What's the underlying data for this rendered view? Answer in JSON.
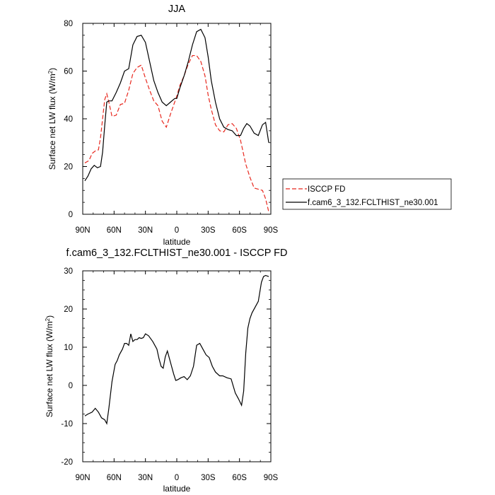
{
  "chart_data": [
    {
      "type": "line",
      "title": "JJA",
      "xlabel": "latitude",
      "ylabel": "Surface net LW flux",
      "ylabel_unit_base": "W/m",
      "ylabel_unit_exp": "2",
      "xlim": [
        90,
        -90
      ],
      "ylim": [
        0,
        80
      ],
      "x_tick_values": [
        90,
        60,
        30,
        0,
        -30,
        -60,
        -90
      ],
      "x_tick_labels": [
        "90N",
        "60N",
        "30N",
        "0",
        "30S",
        "60S",
        "90S"
      ],
      "y_tick_values": [
        0,
        20,
        40,
        60,
        80
      ],
      "y_tick_labels": [
        "0",
        "20",
        "40",
        "60",
        "80"
      ],
      "grid": false,
      "legend": "outside-right",
      "series": [
        {
          "name": "ISCCP FD",
          "color": "#e8281e",
          "dash": "dashed",
          "x": [
            88,
            84,
            81,
            78,
            75,
            73,
            71,
            69,
            67,
            65,
            62,
            58,
            54,
            50,
            46,
            42,
            38,
            34,
            30,
            26,
            22,
            18,
            14,
            10,
            6,
            2,
            0,
            -3,
            -7,
            -11,
            -15,
            -19,
            -23,
            -27,
            -30,
            -33,
            -37,
            -41,
            -45,
            -49,
            -53,
            -57,
            -61,
            -63,
            -66,
            -70,
            -74,
            -78,
            -82,
            -85,
            -88
          ],
          "y": [
            21.5,
            22.5,
            25.5,
            26.5,
            27,
            32,
            40,
            48,
            50.5,
            47,
            41,
            41.5,
            46,
            46.5,
            52,
            59,
            61.5,
            62.5,
            57,
            52,
            47.5,
            45.5,
            39,
            36.5,
            42,
            47,
            49.5,
            54,
            58,
            63,
            66.5,
            66.5,
            64,
            58,
            50,
            44,
            37.5,
            35,
            34.5,
            37.5,
            38,
            36,
            31,
            27,
            21,
            15.5,
            11,
            10.5,
            10,
            6.5,
            1
          ]
        },
        {
          "name": "f.cam6_3_132.FCLTHIST_ne30.001",
          "color": "#000000",
          "dash": "solid",
          "x": [
            88,
            85,
            82,
            79,
            76,
            73,
            71,
            69,
            67,
            65,
            62,
            58,
            54,
            50,
            46,
            42,
            38,
            34,
            30,
            26,
            22,
            18,
            14,
            10,
            6,
            2,
            0,
            -3,
            -7,
            -11,
            -15,
            -19,
            -23,
            -27,
            -30,
            -33,
            -37,
            -41,
            -45,
            -49,
            -53,
            -57,
            -61,
            -64,
            -67,
            -70,
            -74,
            -78,
            -82,
            -85,
            -88
          ],
          "y": [
            14,
            16,
            19,
            20.5,
            19.5,
            20,
            26,
            37,
            47,
            47.5,
            47.5,
            51,
            55,
            60,
            61,
            71,
            74.5,
            75,
            72,
            64,
            56,
            51,
            47,
            45.5,
            47,
            48.5,
            48.5,
            53,
            58,
            64,
            71,
            76.5,
            77.5,
            74,
            66,
            56,
            47,
            40,
            36.5,
            35.5,
            35,
            33,
            33,
            36,
            38,
            37,
            34,
            33,
            37.5,
            38.5,
            30
          ]
        }
      ]
    },
    {
      "type": "line",
      "title": "f.cam6_3_132.FCLTHIST_ne30.001 - ISCCP FD",
      "xlabel": "latitude",
      "ylabel": "Surface net LW flux",
      "ylabel_unit_base": "W/m",
      "ylabel_unit_exp": "2",
      "xlim": [
        90,
        -90
      ],
      "ylim": [
        -20,
        30
      ],
      "x_tick_values": [
        90,
        60,
        30,
        0,
        -30,
        -60,
        -90
      ],
      "x_tick_labels": [
        "90N",
        "60N",
        "30N",
        "0",
        "30S",
        "60S",
        "90S"
      ],
      "y_tick_values": [
        -20,
        -10,
        0,
        10,
        20,
        30
      ],
      "y_tick_labels": [
        "-20",
        "-10",
        "0",
        "10",
        "20",
        "30"
      ],
      "grid": false,
      "series": [
        {
          "color": "#000000",
          "dash": "solid",
          "x": [
            88,
            85,
            81,
            78,
            75,
            72,
            69,
            67,
            65,
            62,
            59,
            57,
            55,
            52,
            50,
            48,
            46,
            44,
            42,
            40,
            38,
            36,
            34,
            32,
            30,
            27,
            23,
            19,
            17,
            15,
            13,
            11,
            9,
            7,
            5,
            3,
            1,
            -1,
            -4,
            -7,
            -10,
            -13,
            -16,
            -19,
            -22,
            -25,
            -28,
            -31,
            -34,
            -37,
            -41,
            -44,
            -48,
            -52,
            -56,
            -59,
            -62,
            -64,
            -66,
            -68,
            -70,
            -72,
            -75,
            -78,
            -81,
            -83,
            -85,
            -88
          ],
          "y": [
            -8,
            -7.5,
            -7,
            -6,
            -7,
            -8.5,
            -9,
            -10,
            -6,
            1,
            5.5,
            6.5,
            8,
            9.5,
            11,
            11,
            10.5,
            13.5,
            11.5,
            12,
            12,
            12.5,
            12.3,
            12.5,
            13.5,
            13,
            11.5,
            9.5,
            7,
            5,
            4.5,
            7.5,
            9,
            7,
            5,
            3,
            1.3,
            1.5,
            2,
            2.3,
            1.5,
            2.5,
            5,
            10.5,
            11,
            9.5,
            8,
            7.3,
            5,
            3.5,
            2.5,
            2.5,
            2,
            1.7,
            -2,
            -3.5,
            -5.2,
            -1.5,
            8.5,
            15,
            17.5,
            19,
            20.5,
            22,
            27,
            28.5,
            28.8,
            28.5
          ]
        }
      ]
    }
  ]
}
